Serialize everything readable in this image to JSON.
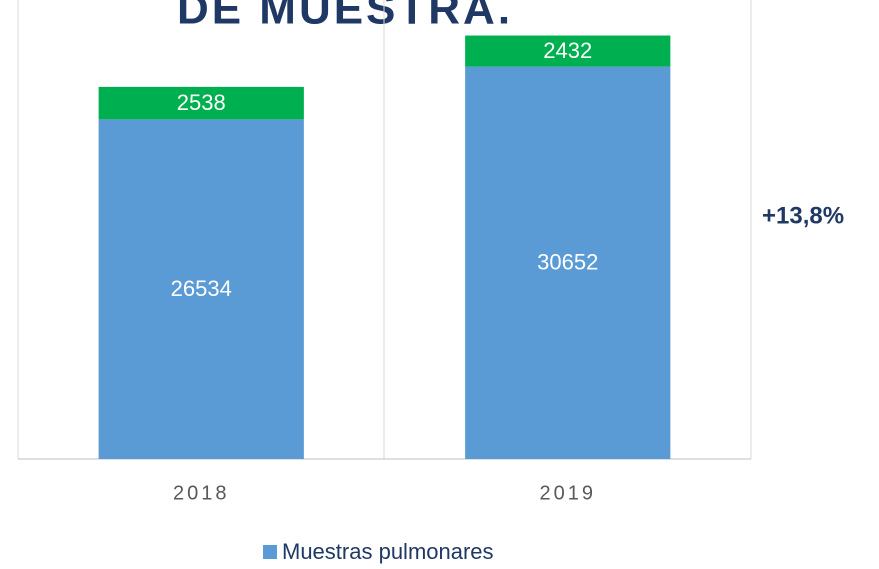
{
  "chart_data": {
    "type": "stacked-bar",
    "title": "DE MUESTRA.",
    "categories": [
      "2018",
      "2019"
    ],
    "series": [
      {
        "name": "Muestras pulmonares",
        "color": "#5b9bd5",
        "values": [
          26534,
          30652
        ]
      },
      {
        "color": "#00b050",
        "values": [
          2538,
          2432
        ]
      }
    ],
    "ylim": [
      0,
      35000
    ],
    "annotation": "+13,8%",
    "legend": "bottom"
  }
}
